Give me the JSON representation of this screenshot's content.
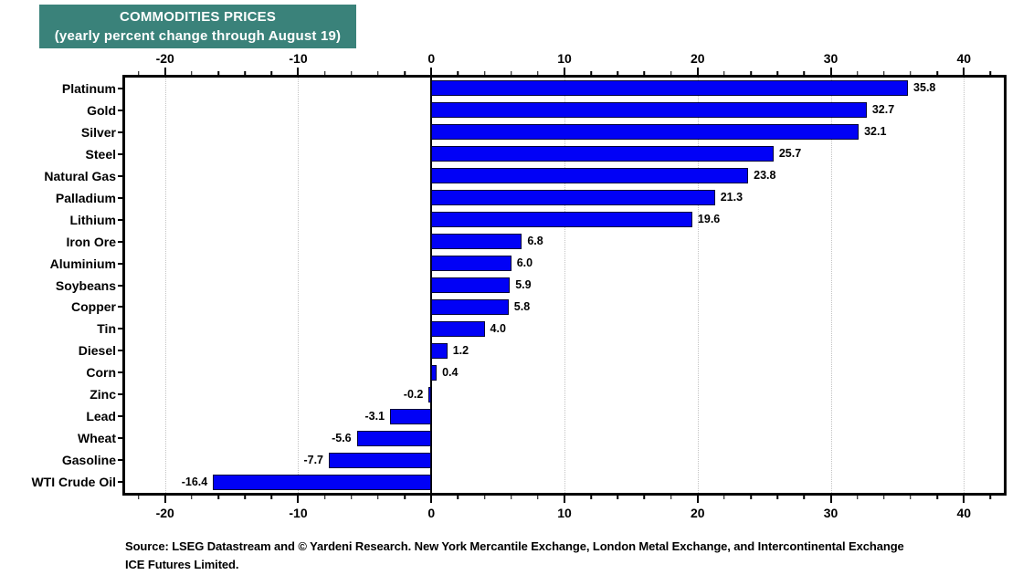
{
  "header": {
    "title_line1": "COMMODITIES PRICES",
    "title_line2": "(yearly percent change through August 19)",
    "bg_color": "#3A827A",
    "text_color": "#FFFFFF"
  },
  "chart_data": {
    "type": "bar",
    "orientation": "horizontal",
    "title": "COMMODITIES PRICES (yearly percent change through August 19)",
    "categories": [
      "Platinum",
      "Gold",
      "Silver",
      "Steel",
      "Natural Gas",
      "Palladium",
      "Lithium",
      "Iron Ore",
      "Aluminium",
      "Soybeans",
      "Copper",
      "Tin",
      "Diesel",
      "Corn",
      "Zinc",
      "Lead",
      "Wheat",
      "Gasoline",
      "WTI Crude Oil"
    ],
    "values": [
      35.8,
      32.7,
      32.1,
      25.7,
      23.8,
      21.3,
      19.6,
      6.8,
      6.0,
      5.9,
      5.8,
      4.0,
      1.2,
      0.4,
      -0.2,
      -3.1,
      -5.6,
      -7.7,
      -16.4
    ],
    "bar_color": "#0101F6",
    "bar_border_color": "#000038",
    "xlim": [
      -23,
      43
    ],
    "x_major_ticks": [
      -20,
      -10,
      0,
      10,
      20,
      30,
      40
    ],
    "x_minor_step": 2,
    "grid": "dotted vertical gridlines at major ticks, solid black line at zero",
    "value_labels": true,
    "axis_positions": "ticks and labels on top and bottom"
  },
  "footer": {
    "source_line1": "Source: LSEG Datastream and © Yardeni Research. New York Mercantile Exchange, London Metal Exchange, and Intercontinental Exchange",
    "source_line2": "ICE Futures Limited."
  }
}
